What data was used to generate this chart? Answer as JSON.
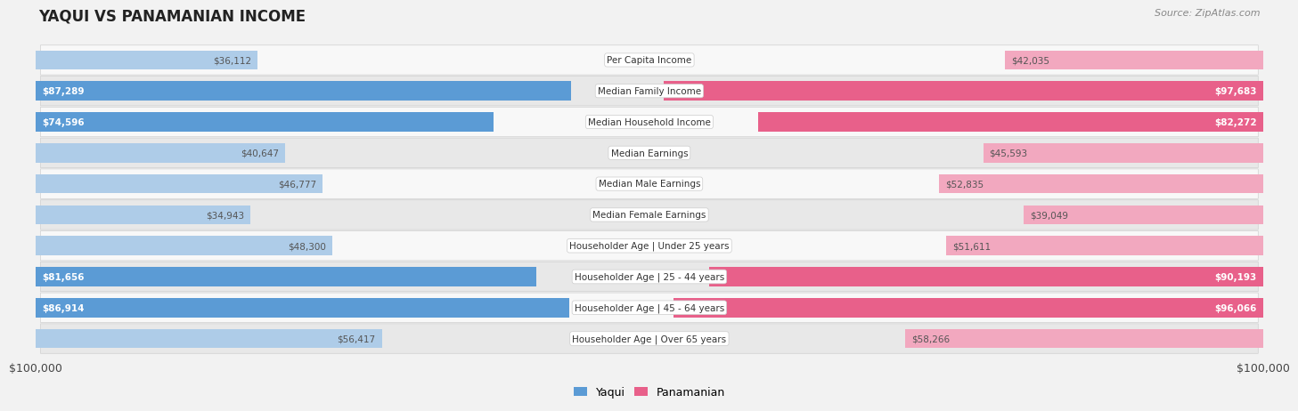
{
  "title": "YAQUI VS PANAMANIAN INCOME",
  "source": "Source: ZipAtlas.com",
  "categories": [
    "Per Capita Income",
    "Median Family Income",
    "Median Household Income",
    "Median Earnings",
    "Median Male Earnings",
    "Median Female Earnings",
    "Householder Age | Under 25 years",
    "Householder Age | 25 - 44 years",
    "Householder Age | 45 - 64 years",
    "Householder Age | Over 65 years"
  ],
  "yaqui_values": [
    36112,
    87289,
    74596,
    40647,
    46777,
    34943,
    48300,
    81656,
    86914,
    56417
  ],
  "panamanian_values": [
    42035,
    97683,
    82272,
    45593,
    52835,
    39049,
    51611,
    90193,
    96066,
    58266
  ],
  "yaqui_labels": [
    "$36,112",
    "$87,289",
    "$74,596",
    "$40,647",
    "$46,777",
    "$34,943",
    "$48,300",
    "$81,656",
    "$86,914",
    "$56,417"
  ],
  "panamanian_labels": [
    "$42,035",
    "$97,683",
    "$82,272",
    "$45,593",
    "$52,835",
    "$39,049",
    "$51,611",
    "$90,193",
    "$96,066",
    "$58,266"
  ],
  "max_value": 100000,
  "yaqui_color_dark": "#5b9bd5",
  "yaqui_color_light": "#aecce8",
  "panamanian_color_dark": "#e8608a",
  "panamanian_color_light": "#f2a8bf",
  "bg_color": "#f2f2f2",
  "row_bg_even": "#f8f8f8",
  "row_bg_odd": "#e8e8e8",
  "label_color_white": "#ffffff",
  "label_color_dark": "#555555",
  "center_label_bg": "#ffffff",
  "center_label_color": "#333333",
  "threshold": 60000,
  "x_axis_label_left": "$100,000",
  "x_axis_label_right": "$100,000",
  "legend_yaqui": "Yaqui",
  "legend_panamanian": "Panamanian"
}
